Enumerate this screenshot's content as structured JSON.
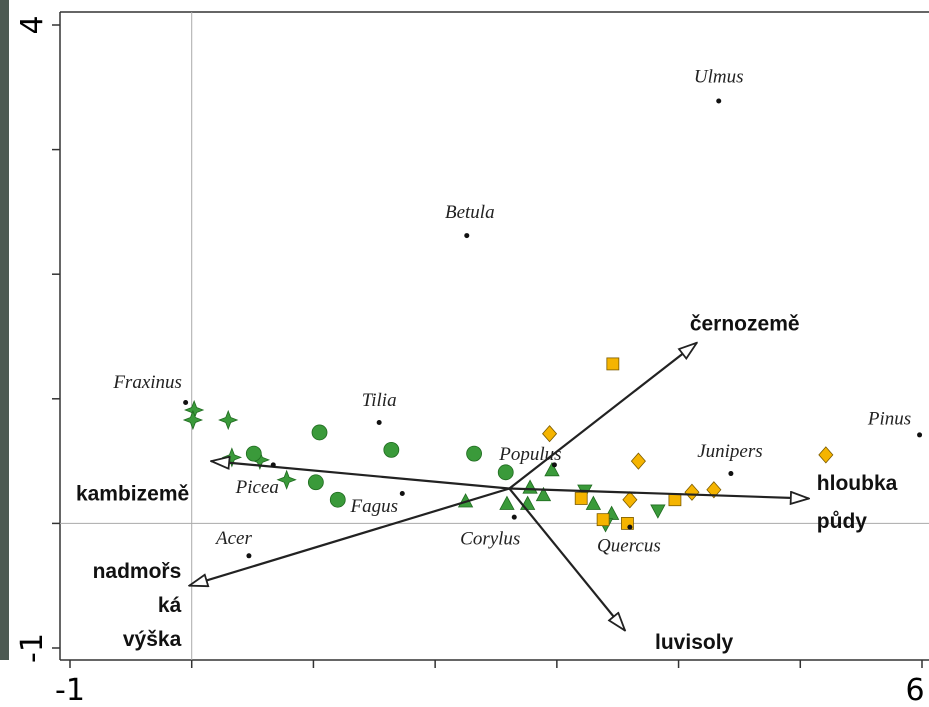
{
  "chart_data": {
    "type": "biplot",
    "xlim": [
      -1,
      6
    ],
    "ylim": [
      -1,
      4
    ],
    "xticks": [
      -1,
      {
        "value": 0,
        "label": null
      },
      {
        "value": 1,
        "label": null
      },
      {
        "value": 2,
        "label": null
      },
      {
        "value": 3,
        "label": null
      },
      {
        "value": 4,
        "label": null
      },
      {
        "value": 5,
        "label": null
      },
      6
    ],
    "yticks": [
      {
        "value": -1,
        "label": "-1"
      },
      {
        "value": 0,
        "label": null
      },
      {
        "value": 1,
        "label": null
      },
      {
        "value": 2,
        "label": null
      },
      {
        "value": 3,
        "label": null
      },
      {
        "value": 4,
        "label": "4"
      }
    ],
    "zero_lines": true,
    "species": {
      "color": "#111111",
      "labels": [
        "Ulmus",
        "Betula",
        "Fraxinus",
        "Tilia",
        "Populus",
        "Picea",
        "Fagus",
        "Corylus",
        "Acer",
        "Quercus",
        "Junipers",
        "Pinus"
      ],
      "x": [
        4.33,
        2.26,
        -0.05,
        1.54,
        2.98,
        0.67,
        1.73,
        2.65,
        0.47,
        3.6,
        4.43,
        5.98
      ],
      "y": [
        3.39,
        2.31,
        0.97,
        0.81,
        0.47,
        0.47,
        0.24,
        0.05,
        -0.26,
        -0.03,
        0.4,
        0.71
      ]
    },
    "arrows": {
      "color": "#222222",
      "origin_x": 2.61,
      "origin_y": 0.28,
      "labels": [
        [
          "černozemě"
        ],
        [
          "hloubka",
          "půdy"
        ],
        [
          "kambizemě"
        ],
        [
          "nadmořs",
          "ká",
          "výška"
        ],
        [
          "luvisoly"
        ]
      ],
      "x": [
        4.15,
        5.07,
        0.16,
        -0.02,
        3.56
      ],
      "y": [
        1.45,
        0.2,
        0.5,
        -0.5,
        -0.86
      ]
    },
    "series": [
      {
        "marker": "star",
        "color": "#3a9a3a",
        "x": [
          0.02,
          0.01,
          0.3,
          0.33,
          0.56,
          0.78
        ],
        "y": [
          0.91,
          0.83,
          0.83,
          0.53,
          0.51,
          0.35
        ]
      },
      {
        "marker": "circle",
        "color": "#3a9a3a",
        "x": [
          0.51,
          1.05,
          1.64,
          2.32,
          2.58,
          1.02,
          1.2
        ],
        "y": [
          0.56,
          0.73,
          0.59,
          0.56,
          0.41,
          0.33,
          0.19
        ]
      },
      {
        "marker": "triangle-up",
        "color": "#3a9a3a",
        "x": [
          2.25,
          2.59,
          2.78,
          2.89,
          2.76,
          2.96,
          3.3,
          3.45
        ],
        "y": [
          0.18,
          0.16,
          0.29,
          0.23,
          0.16,
          0.43,
          0.16,
          0.08
        ]
      },
      {
        "marker": "triangle-down",
        "color": "#3a9a3a",
        "x": [
          3.23,
          3.4,
          3.83
        ],
        "y": [
          0.26,
          -0.01,
          0.1
        ]
      },
      {
        "marker": "square",
        "color": "#f5b400",
        "x": [
          3.46,
          3.2,
          3.38,
          3.58,
          3.97
        ],
        "y": [
          1.28,
          0.2,
          0.03,
          0.0,
          0.19
        ]
      },
      {
        "marker": "diamond",
        "color": "#f5b400",
        "x": [
          2.94,
          3.67,
          3.6,
          4.11,
          4.29,
          5.21
        ],
        "y": [
          0.72,
          0.5,
          0.19,
          0.25,
          0.27,
          0.55
        ]
      }
    ]
  }
}
